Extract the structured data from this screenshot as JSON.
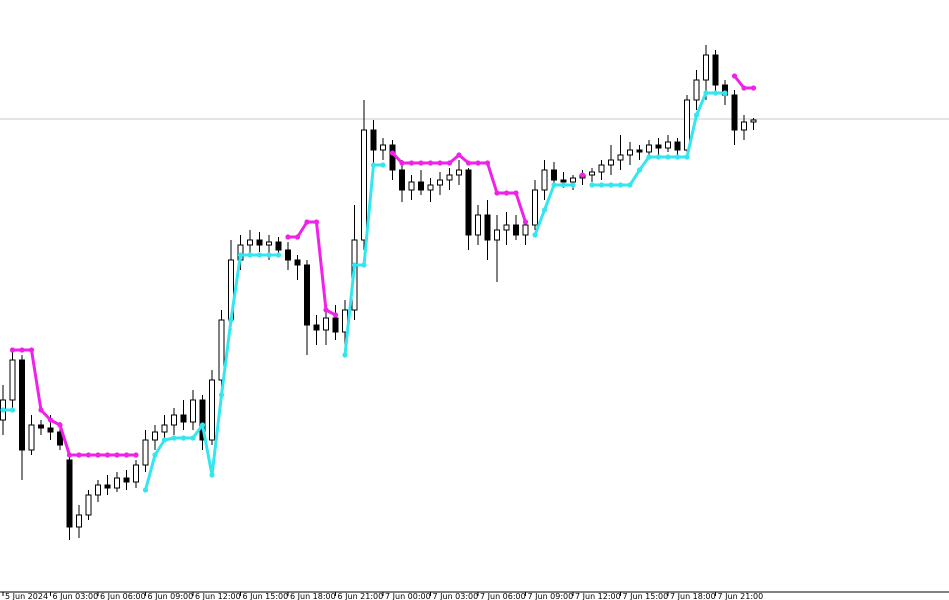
{
  "chart_data": {
    "type": "candlestick",
    "categories": [
      "5 Jun 2024",
      null,
      null,
      null,
      null,
      "6 Jun 03:00",
      null,
      null,
      null,
      null,
      "6 Jun 06:00",
      null,
      null,
      null,
      null,
      "6 Jun 09:00",
      null,
      null,
      null,
      null,
      "6 Jun 12:00",
      null,
      null,
      null,
      null,
      "6 Jun 15:00",
      null,
      null,
      null,
      null,
      "6 Jun 18:00",
      null,
      null,
      null,
      null,
      "6 Jun 21:00",
      null,
      null,
      null,
      null,
      "7 Jun 00:00",
      null,
      null,
      null,
      null,
      "7 Jun 03:00",
      null,
      null,
      null,
      null,
      "7 Jun 06:00",
      null,
      null,
      null,
      null,
      "7 Jun 09:00",
      null,
      null,
      null,
      null,
      "7 Jun 12:00",
      null,
      null,
      null,
      null,
      "7 Jun 15:00",
      null,
      null,
      null,
      null,
      "7 Jun 18:00",
      null,
      null,
      null,
      null,
      "7 Jun 21:00",
      null,
      null,
      null,
      null
    ],
    "open": [
      180,
      200,
      240,
      150,
      175,
      172,
      168,
      140,
      73,
      85,
      105,
      115,
      112,
      122,
      118,
      135,
      160,
      168,
      175,
      185,
      178,
      200,
      160,
      220,
      280,
      340,
      355,
      360,
      355,
      358,
      350,
      340,
      335,
      275,
      270,
      282,
      268,
      290,
      360,
      470,
      450,
      455,
      430,
      410,
      418,
      410,
      415,
      420,
      425,
      430,
      365,
      385,
      360,
      370,
      375,
      365,
      375,
      410,
      430,
      420,
      418,
      422,
      425,
      428,
      435,
      440,
      445,
      450,
      448,
      455,
      452,
      458,
      450,
      500,
      520,
      545,
      515,
      505,
      470,
      478
    ],
    "high": [
      215,
      250,
      245,
      185,
      180,
      185,
      178,
      145,
      95,
      110,
      120,
      125,
      128,
      130,
      140,
      170,
      175,
      185,
      192,
      200,
      210,
      205,
      230,
      290,
      360,
      365,
      370,
      368,
      365,
      363,
      358,
      345,
      340,
      285,
      290,
      295,
      300,
      395,
      500,
      480,
      462,
      460,
      440,
      425,
      430,
      422,
      428,
      432,
      440,
      432,
      395,
      400,
      385,
      388,
      385,
      380,
      420,
      440,
      438,
      428,
      425,
      430,
      432,
      440,
      455,
      465,
      458,
      455,
      460,
      462,
      465,
      462,
      505,
      530,
      555,
      550,
      520,
      510,
      485,
      482
    ],
    "low": [
      165,
      190,
      120,
      145,
      165,
      160,
      150,
      60,
      62,
      80,
      98,
      105,
      108,
      110,
      112,
      128,
      150,
      160,
      165,
      170,
      170,
      150,
      155,
      210,
      270,
      330,
      345,
      348,
      340,
      345,
      330,
      320,
      245,
      255,
      255,
      260,
      250,
      280,
      350,
      435,
      440,
      420,
      398,
      400,
      405,
      398,
      405,
      410,
      415,
      350,
      355,
      340,
      318,
      355,
      360,
      355,
      370,
      400,
      415,
      412,
      410,
      415,
      418,
      420,
      425,
      430,
      435,
      440,
      442,
      445,
      448,
      445,
      448,
      490,
      500,
      505,
      495,
      455,
      460,
      470
    ],
    "close": [
      200,
      240,
      150,
      175,
      172,
      168,
      155,
      73,
      85,
      105,
      115,
      112,
      122,
      118,
      135,
      160,
      168,
      175,
      185,
      178,
      200,
      160,
      220,
      280,
      340,
      355,
      360,
      355,
      358,
      350,
      340,
      335,
      275,
      270,
      282,
      268,
      290,
      360,
      470,
      450,
      455,
      430,
      410,
      418,
      410,
      415,
      420,
      425,
      430,
      365,
      385,
      360,
      370,
      375,
      365,
      375,
      410,
      430,
      420,
      418,
      422,
      425,
      428,
      435,
      440,
      445,
      450,
      448,
      455,
      452,
      458,
      450,
      500,
      520,
      545,
      515,
      505,
      470,
      478,
      480
    ],
    "up_color": "#ffffff",
    "down_color": "#000000",
    "series": [
      {
        "color": "#33e6f0",
        "values": [
          190,
          190,
          null,
          null,
          null,
          null,
          null,
          null,
          null,
          null,
          null,
          null,
          null,
          null,
          null,
          110,
          145,
          160,
          162,
          162,
          162,
          175,
          125,
          205,
          280,
          345,
          345,
          345,
          345,
          345,
          null,
          null,
          null,
          null,
          null,
          null,
          245,
          335,
          335,
          435,
          435,
          null,
          null,
          null,
          null,
          null,
          null,
          null,
          null,
          null,
          null,
          null,
          null,
          null,
          null,
          null,
          365,
          390,
          415,
          415,
          415,
          null,
          415,
          415,
          415,
          415,
          415,
          430,
          443,
          443,
          443,
          443,
          443,
          485,
          507,
          507,
          507,
          null,
          null,
          null
        ]
      },
      {
        "color": "#f022ea",
        "values": [
          null,
          250,
          250,
          250,
          190,
          180,
          175,
          145,
          145,
          145,
          145,
          145,
          145,
          145,
          145,
          null,
          null,
          null,
          null,
          null,
          null,
          null,
          null,
          null,
          null,
          null,
          null,
          null,
          null,
          null,
          363,
          363,
          378,
          378,
          290,
          285,
          null,
          null,
          null,
          null,
          null,
          447,
          437,
          437,
          437,
          437,
          437,
          437,
          445,
          437,
          437,
          437,
          407,
          407,
          407,
          378,
          null,
          null,
          null,
          null,
          null,
          425,
          null,
          null,
          null,
          null,
          null,
          null,
          null,
          null,
          null,
          null,
          null,
          null,
          null,
          null,
          null,
          524,
          512,
          512
        ]
      }
    ],
    "price_line": 481,
    "ylim": [
      0,
      600
    ]
  }
}
